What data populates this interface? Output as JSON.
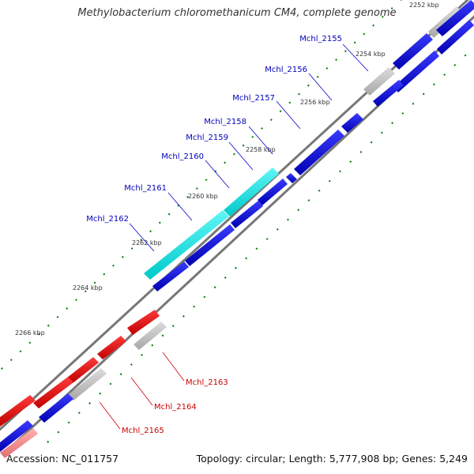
{
  "title": "Methylobacterium chloromethanicum CM4, complete genome",
  "footer": {
    "accession": "Accession: NC_011757",
    "summary": "Topology: circular; Length: 5,777,908 bp; Genes: 5,249"
  },
  "colors": {
    "backbone": "#777777",
    "forward_gene": "#0000dd",
    "reverse_gene": "#ee0000",
    "rna_gene": "#00e5e5",
    "other_gene": "#bbbbbb",
    "tick": "#007700",
    "label_forward": "#0000bb",
    "label_reverse": "#cc0000"
  },
  "ruler_labels": [
    "2252 kbp",
    "2254 kbp",
    "2256 kbp",
    "2258 kbp",
    "2260 kbp",
    "2262 kbp",
    "2264 kbp",
    "2266 kbp"
  ],
  "gene_labels": [
    {
      "id": "g2155",
      "label": "Mchl_2155",
      "strand": "forward"
    },
    {
      "id": "g2156",
      "label": "Mchl_2156",
      "strand": "forward"
    },
    {
      "id": "g2157",
      "label": "Mchl_2157",
      "strand": "forward"
    },
    {
      "id": "g2158",
      "label": "Mchl_2158",
      "strand": "forward"
    },
    {
      "id": "g2159",
      "label": "Mchl_2159",
      "strand": "forward"
    },
    {
      "id": "g2160",
      "label": "Mchl_2160",
      "strand": "forward"
    },
    {
      "id": "g2161",
      "label": "Mchl_2161",
      "strand": "forward"
    },
    {
      "id": "g2162",
      "label": "Mchl_2162",
      "strand": "forward"
    },
    {
      "id": "g2163",
      "label": "Mchl_2163",
      "strand": "reverse"
    },
    {
      "id": "g2164",
      "label": "Mchl_2164",
      "strand": "reverse"
    },
    {
      "id": "g2165",
      "label": "Mchl_2165",
      "strand": "reverse"
    }
  ]
}
